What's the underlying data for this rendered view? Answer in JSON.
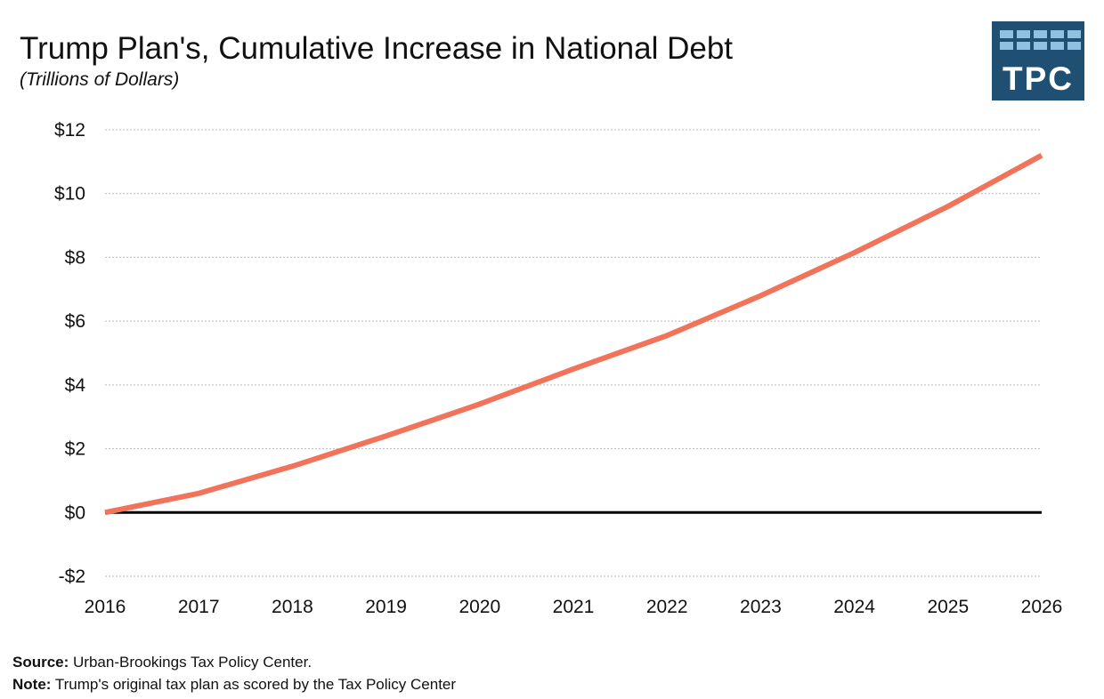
{
  "header": {
    "title": "Trump Plan's, Cumulative Increase in National Debt",
    "subtitle": "(Trillions of Dollars)"
  },
  "logo": {
    "text": "TPC",
    "background": "#1f4f72",
    "tile_color": "#8fc1e0"
  },
  "chart_data": {
    "type": "line",
    "title": "Trump Plan's, Cumulative Increase in National Debt",
    "subtitle": "(Trillions of Dollars)",
    "x": [
      2016,
      2017,
      2018,
      2019,
      2020,
      2021,
      2022,
      2023,
      2024,
      2025,
      2026
    ],
    "series": [
      {
        "values": [
          0,
          0.6,
          1.45,
          2.4,
          3.4,
          4.5,
          5.55,
          6.8,
          8.15,
          9.6,
          11.2
        ],
        "color": "#f0735a"
      }
    ],
    "ylim": [
      -2,
      12
    ],
    "yticks": [
      12,
      10,
      8,
      6,
      4,
      2,
      0,
      -2
    ],
    "ytick_labels": [
      "$12",
      "$10",
      "$8",
      "$6",
      "$4",
      "$2",
      "$0",
      "-$2"
    ],
    "xtick_labels": [
      "2016",
      "2017",
      "2018",
      "2019",
      "2020",
      "2021",
      "2022",
      "2023",
      "2024",
      "2025",
      "2026"
    ],
    "grid": true,
    "grid_color": "#b9b9b9",
    "zero_line_color": "#000000",
    "xlabel": "",
    "ylabel": ""
  },
  "footer": {
    "source_label": "Source:",
    "source_text": " Urban-Brookings Tax Policy Center.",
    "note_label": "Note:",
    "note_text": " Trump's original tax plan as scored by the Tax Policy Center"
  }
}
